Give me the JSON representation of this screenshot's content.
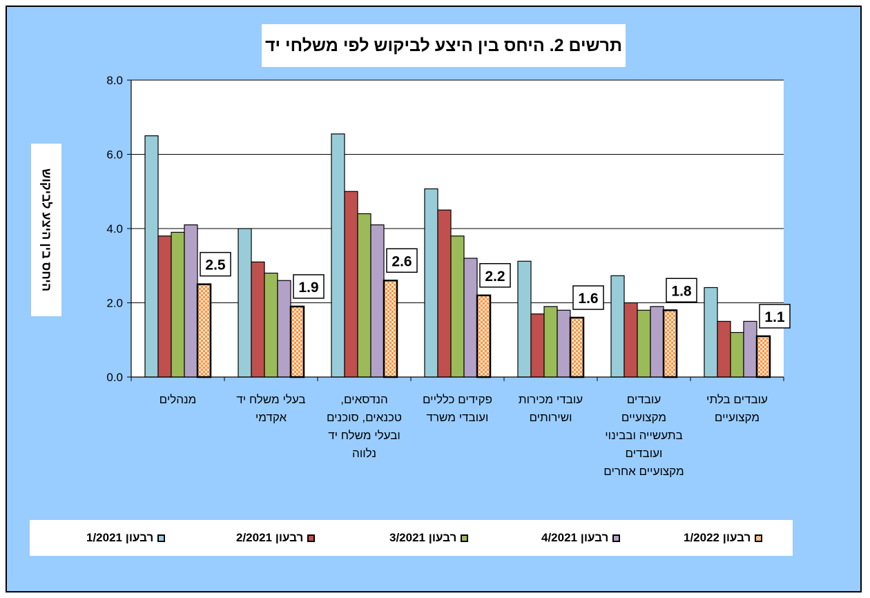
{
  "chart_data": {
    "type": "bar",
    "title": "תרשים 2. היחס בין היצע לביקוש לפי משלחי יד",
    "ylabel": "היחס בין היצע לביקוש",
    "xlabel": "",
    "ylim": [
      0,
      8
    ],
    "y_ticks": [
      "0.0",
      "2.0",
      "4.0",
      "6.0",
      "8.0"
    ],
    "grid": true,
    "legend_position": "bottom",
    "categories": [
      [
        "מנהלים"
      ],
      [
        "בעלי משלח יד",
        "אקדמי"
      ],
      [
        "הנדסאים,",
        "טכנאים, סוכנים",
        "ובעלי משלח יד",
        "נלווה"
      ],
      [
        "פקידים כלליים",
        "ועובדי משרד"
      ],
      [
        "עובדי מכירות",
        "ושירותים"
      ],
      [
        "עובדים",
        "מקצועיים",
        "בתעשייה ובבינוי",
        "ועובדים",
        "מקצועיים אחרים"
      ],
      [
        "עובדים בלתי",
        "מקצועיים"
      ]
    ],
    "series": [
      {
        "name": "רבעון 1/2021",
        "color": "#99ccd9",
        "values": [
          6.5,
          4.0,
          6.55,
          5.07,
          3.12,
          2.73,
          2.41
        ]
      },
      {
        "name": "רבעון 2/2021",
        "color": "#c0504d",
        "values": [
          3.8,
          3.1,
          5.0,
          4.5,
          1.7,
          2.0,
          1.5
        ]
      },
      {
        "name": "רבעון 3/2021",
        "color": "#9bbb59",
        "values": [
          3.9,
          2.8,
          4.4,
          3.8,
          1.9,
          1.8,
          1.2
        ]
      },
      {
        "name": "רבעון 4/2021",
        "color": "#b3a2c7",
        "values": [
          4.1,
          2.6,
          4.1,
          3.2,
          1.8,
          1.9,
          1.5
        ]
      },
      {
        "name": "רבעון 1/2022",
        "color": "#f79646",
        "pattern": "checker",
        "values": [
          2.5,
          1.9,
          2.6,
          2.2,
          1.6,
          1.8,
          1.1
        ]
      }
    ],
    "annotations": [
      "2.5",
      "1.9",
      "2.6",
      "2.2",
      "1.6",
      "1.8",
      "1.1"
    ]
  }
}
